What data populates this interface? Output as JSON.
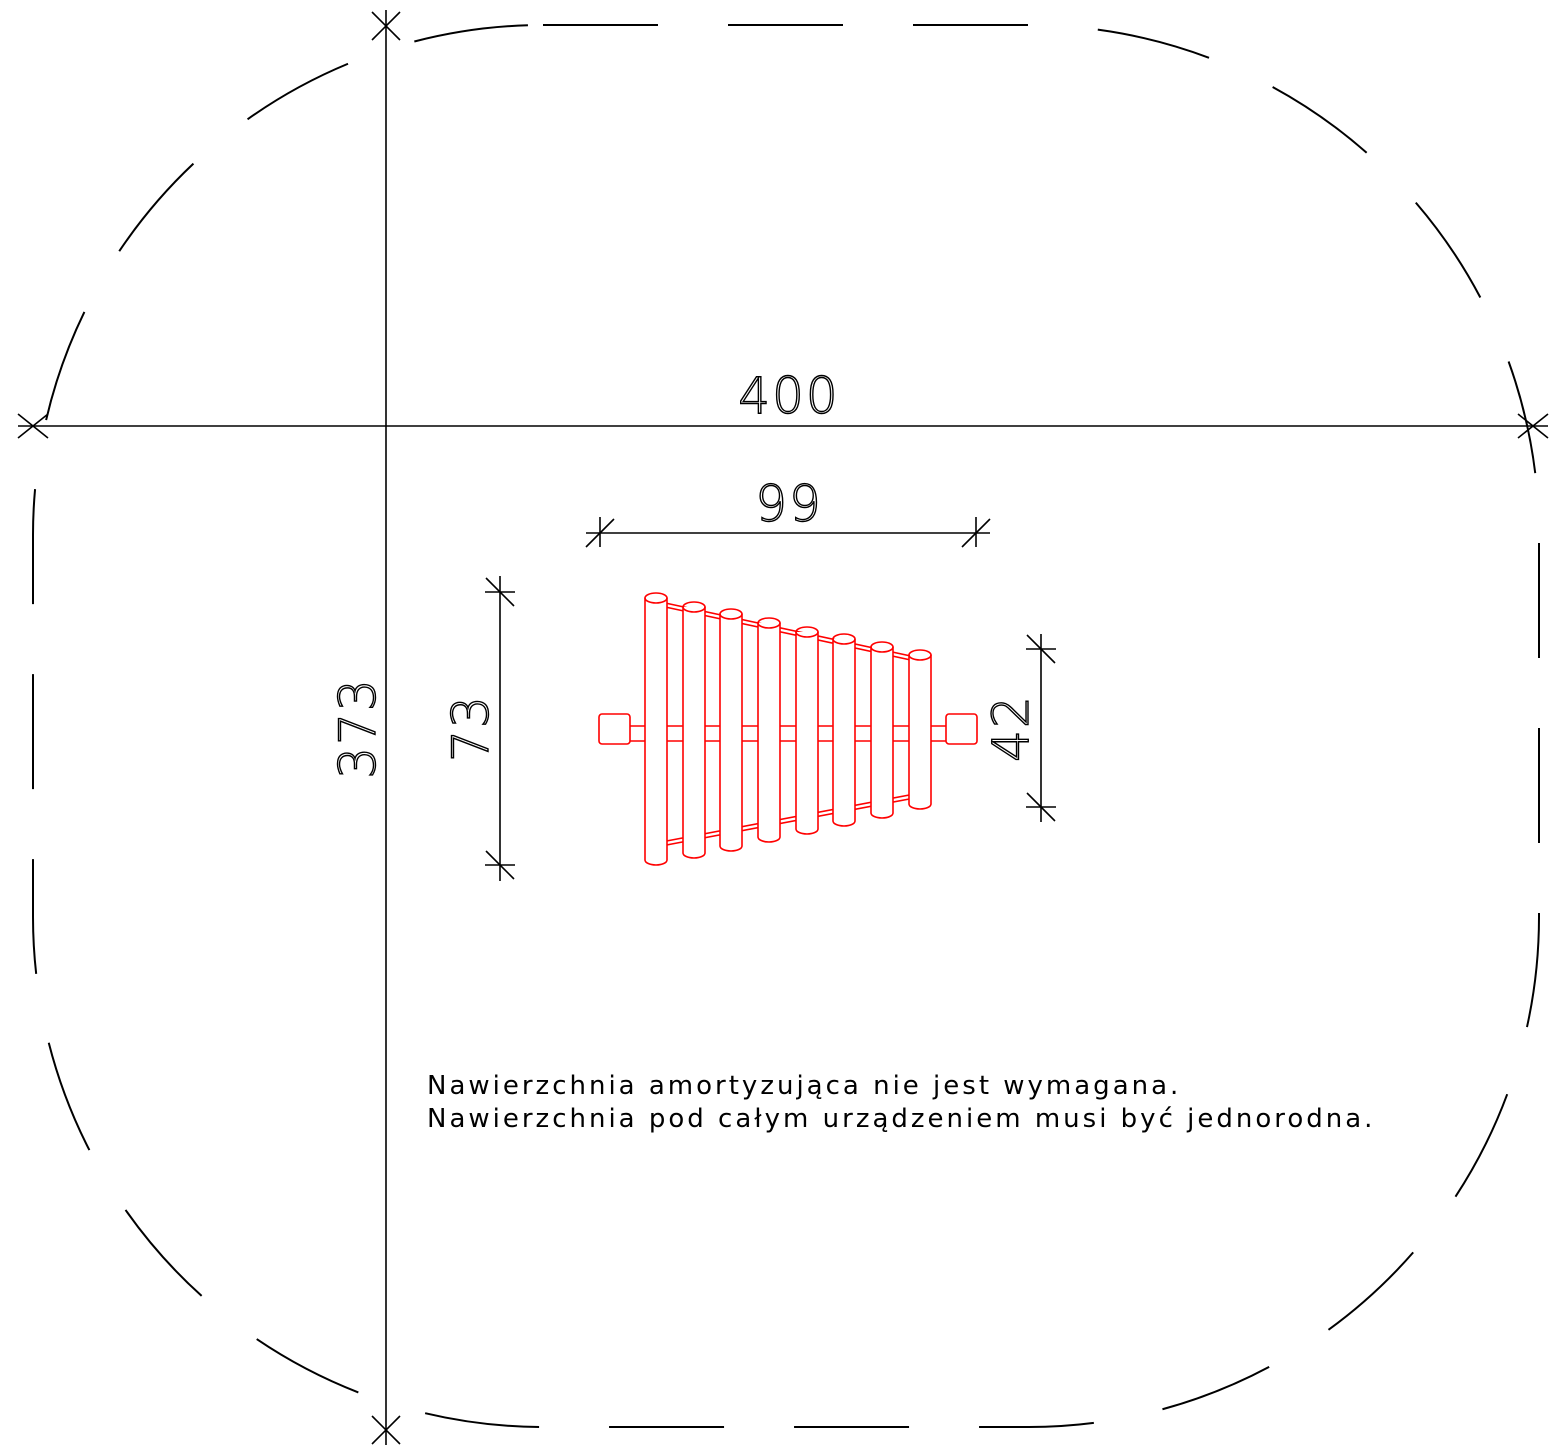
{
  "dimensions": {
    "overall_width": "400",
    "overall_depth": "373",
    "device_width": "99",
    "device_depth": "73",
    "tube_depth": "42"
  },
  "notes": {
    "line1": "Nawierzchnia amortyzująca nie jest wymagana.",
    "line2": "Nawierzchnia pod całym urządzeniem musi być jednorodna."
  },
  "colors": {
    "drawing_ink": "#000000",
    "equipment": "#ff0000",
    "background": "#ffffff"
  }
}
